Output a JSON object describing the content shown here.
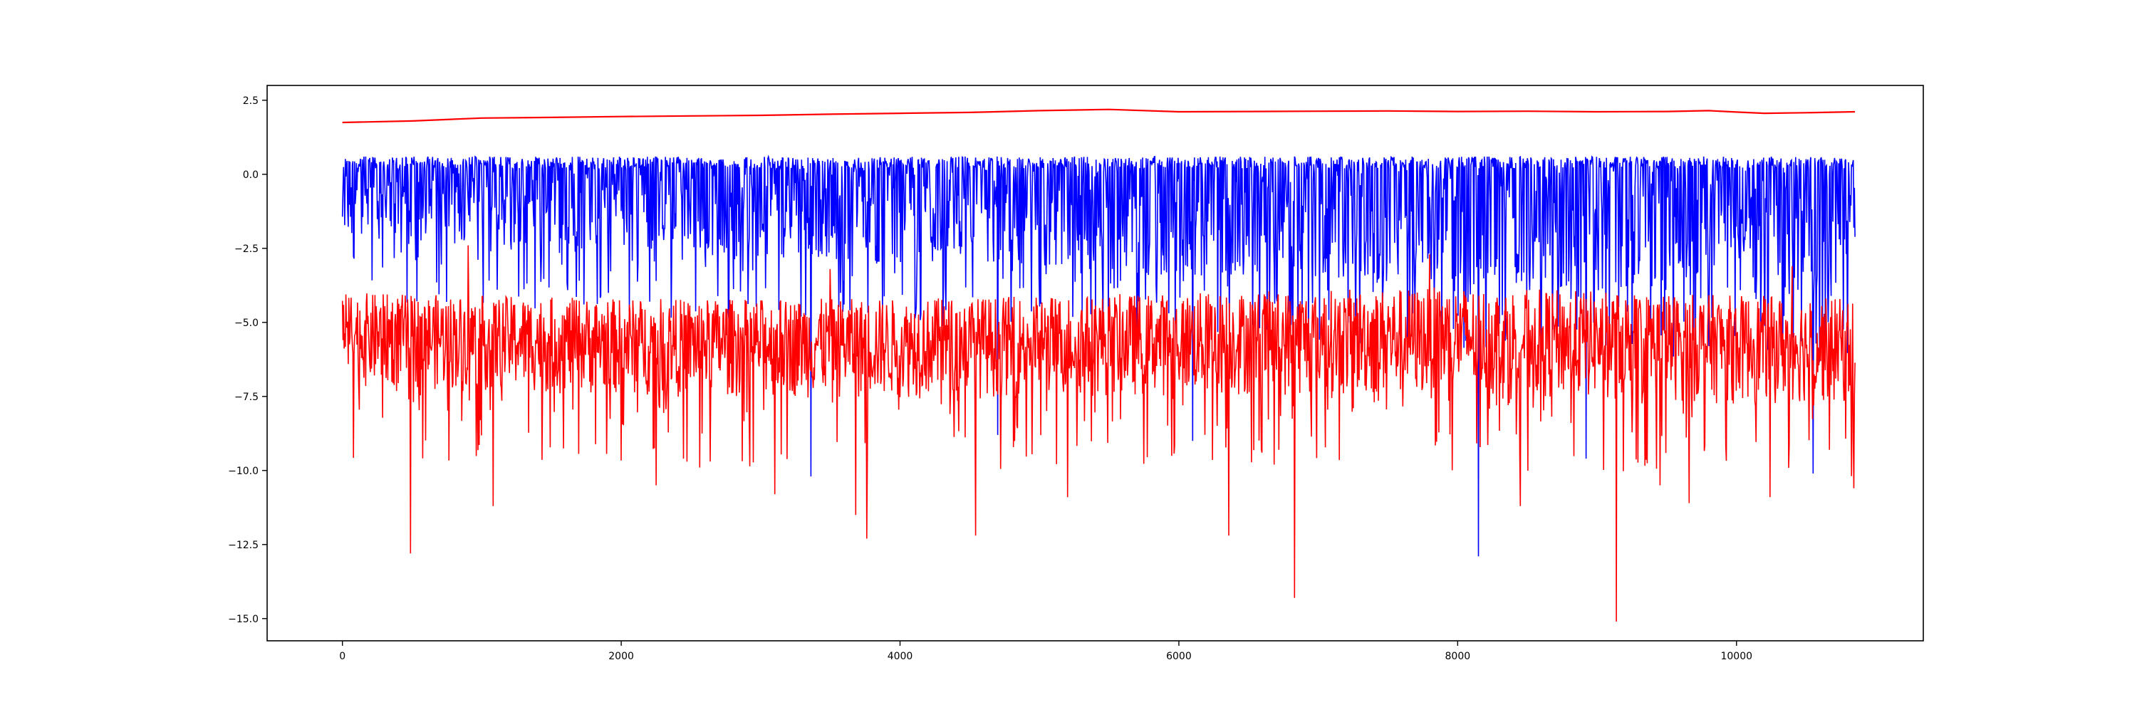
{
  "chart_data": {
    "type": "line",
    "title": "",
    "xlabel": "",
    "ylabel": "",
    "xlim": [
      -540,
      11340
    ],
    "ylim": [
      -15.75,
      3.0
    ],
    "grid": false,
    "legend": "none",
    "x_ticks": [
      0,
      2000,
      4000,
      6000,
      8000,
      10000
    ],
    "x_tick_labels": [
      "0",
      "2000",
      "4000",
      "6000",
      "8000",
      "10000"
    ],
    "y_ticks": [
      2.5,
      0.0,
      -2.5,
      -5.0,
      -7.5,
      -10.0,
      -12.5,
      -15.0
    ],
    "y_tick_labels": [
      "2.5",
      "0.0",
      "−2.5",
      "−5.0",
      "−7.5",
      "−10.0",
      "−12.5",
      "−15.0"
    ],
    "series": [
      {
        "color": "#0000ff",
        "style": "dense-noise",
        "x_range": [
          0,
          10850
        ],
        "upper_envelope": [
          [
            0,
            0.7
          ],
          [
            2000,
            0.7
          ],
          [
            4000,
            0.7
          ],
          [
            6000,
            0.7
          ],
          [
            8000,
            0.7
          ],
          [
            10850,
            0.7
          ]
        ],
        "typical_band": [
          [
            0,
            0.6,
            -2.2
          ],
          [
            2000,
            0.6,
            -2.6
          ],
          [
            4000,
            0.6,
            -3.0
          ],
          [
            6000,
            0.6,
            -3.4
          ],
          [
            8000,
            0.6,
            -3.8
          ],
          [
            10850,
            0.6,
            -4.2
          ]
        ],
        "lower_spikes": [
          [
            3360,
            -10.2
          ],
          [
            4700,
            -8.8
          ],
          [
            6100,
            -9.0
          ],
          [
            8150,
            -12.9
          ],
          [
            8920,
            -9.6
          ],
          [
            10550,
            -10.1
          ]
        ]
      },
      {
        "color": "#ff0000",
        "style": "dense-noise",
        "x_range": [
          0,
          10850
        ],
        "typical_band": [
          [
            0,
            -4.0,
            -7.2
          ],
          [
            2000,
            -4.2,
            -7.5
          ],
          [
            4000,
            -4.2,
            -7.6
          ],
          [
            6000,
            -4.0,
            -7.5
          ],
          [
            8000,
            -3.8,
            -7.6
          ],
          [
            10850,
            -4.2,
            -7.8
          ]
        ],
        "upper_peaks": [
          [
            900,
            -2.4
          ],
          [
            3500,
            -3.2
          ],
          [
            7800,
            -2.7
          ],
          [
            10400,
            -3.1
          ]
        ],
        "lower_spikes": [
          [
            490,
            -12.8
          ],
          [
            1080,
            -11.2
          ],
          [
            2250,
            -10.5
          ],
          [
            3100,
            -10.8
          ],
          [
            3680,
            -11.5
          ],
          [
            3760,
            -12.3
          ],
          [
            4540,
            -12.2
          ],
          [
            5200,
            -10.9
          ],
          [
            6360,
            -12.2
          ],
          [
            6830,
            -14.3
          ],
          [
            8450,
            -11.2
          ],
          [
            9140,
            -15.1
          ],
          [
            9450,
            -10.5
          ],
          [
            9660,
            -11.1
          ],
          [
            10240,
            -10.9
          ],
          [
            10840,
            -10.6
          ]
        ]
      },
      {
        "color": "#ff0000",
        "style": "smooth",
        "x": [
          0,
          500,
          1000,
          1500,
          2000,
          2500,
          3000,
          3500,
          4000,
          4500,
          5000,
          5500,
          6000,
          6500,
          7000,
          7500,
          8000,
          8500,
          9000,
          9500,
          9800,
          10000,
          10200,
          10500,
          10850
        ],
        "y": [
          1.75,
          1.8,
          1.9,
          1.92,
          1.95,
          1.97,
          1.99,
          2.03,
          2.06,
          2.09,
          2.15,
          2.19,
          2.11,
          2.12,
          2.13,
          2.14,
          2.12,
          2.13,
          2.11,
          2.12,
          2.15,
          2.1,
          2.06,
          2.08,
          2.11
        ]
      }
    ]
  }
}
